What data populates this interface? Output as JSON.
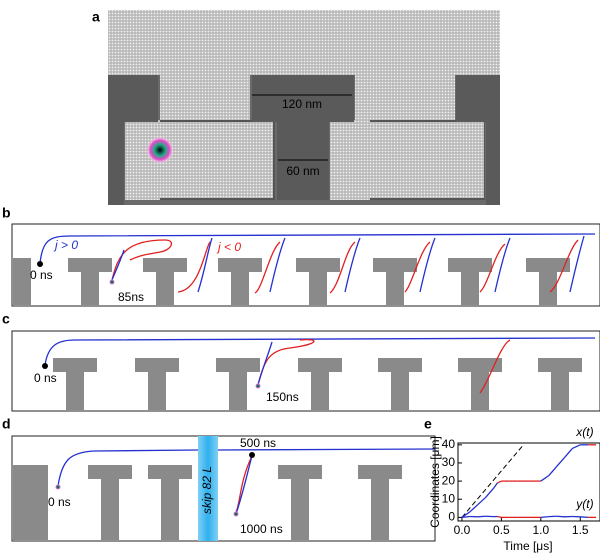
{
  "panels": [
    {
      "label": "a",
      "annotations": [
        "120 nm",
        "60 nm"
      ]
    },
    {
      "label": "b",
      "annotations": [
        "j > 0",
        "j < 0",
        "0 ns",
        "85ns"
      ]
    },
    {
      "label": "c",
      "annotations": [
        "0 ns",
        "150ns"
      ]
    },
    {
      "label": "d",
      "annotations": [
        "skip 82 L",
        "500 ns",
        "0 ns",
        "1000 ns"
      ]
    }
  ],
  "chart_data": {
    "type": "line",
    "panel_label": "e",
    "x_label": "Time [μs]",
    "y_label": "Coordinates [μm]",
    "x": [
      0,
      0.1,
      0.2,
      0.3,
      0.4,
      0.45,
      0.5,
      0.6,
      0.7,
      0.8,
      0.9,
      1.0,
      1.1,
      1.2,
      1.3,
      1.4,
      1.5,
      1.6,
      1.7
    ],
    "series": [
      {
        "name": "x(t)",
        "values": [
          0,
          3,
          7,
          11,
          16,
          19,
          20,
          20,
          20,
          20,
          20,
          20,
          23,
          28,
          33,
          38,
          40,
          40,
          40
        ],
        "colors": [
          "#2430d0",
          "#2430d0",
          "#2430d0",
          "#2430d0",
          "#2430d0",
          "#e02020",
          "#e02020",
          "#e02020",
          "#e02020",
          "#e02020",
          "#e02020",
          "#2430d0",
          "#2430d0",
          "#2430d0",
          "#2430d0",
          "#2430d0",
          "#2430d0",
          "#e02020",
          "#e02020"
        ]
      },
      {
        "name": "y(t)",
        "values": [
          0,
          0.5,
          0.3,
          0.6,
          0.4,
          0.5,
          0,
          0,
          0,
          0,
          0,
          0,
          0.4,
          0.6,
          0.3,
          0.5,
          0.3,
          0,
          0
        ],
        "colors": [
          "#2430d0",
          "#2430d0",
          "#2430d0",
          "#2430d0",
          "#2430d0",
          "#e02020",
          "#e02020",
          "#e02020",
          "#e02020",
          "#e02020",
          "#e02020",
          "#2430d0",
          "#2430d0",
          "#2430d0",
          "#2430d0",
          "#2430d0",
          "#2430d0",
          "#e02020",
          "#e02020"
        ]
      }
    ],
    "dashed_line": {
      "x": [
        0,
        0.78
      ],
      "values": [
        0,
        40
      ]
    },
    "xlim": [
      -0.05,
      1.75
    ],
    "ylim": [
      -2,
      41
    ],
    "xticks": [
      {
        "value": 0,
        "label": "0.0"
      },
      0.5,
      {
        "value": 1,
        "label": "1.0"
      },
      1.5
    ],
    "yticks": [
      0,
      10,
      20,
      30,
      40
    ]
  }
}
